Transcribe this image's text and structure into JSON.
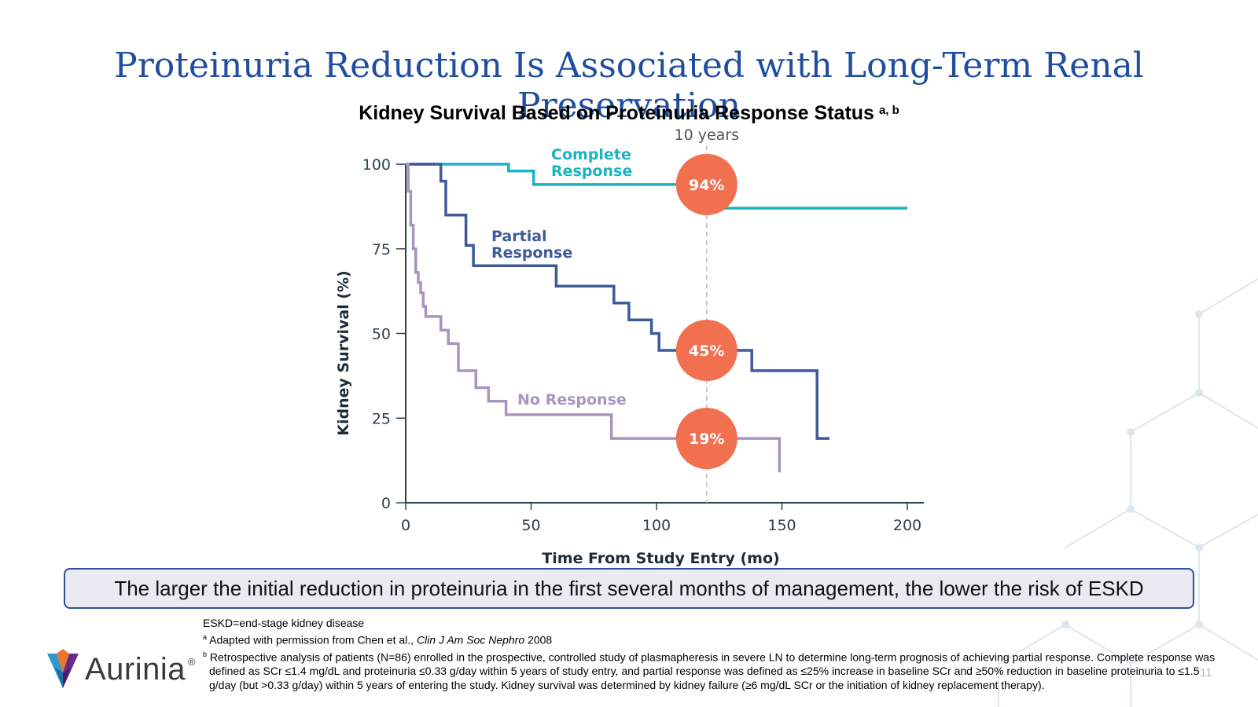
{
  "slide": {
    "title": "Proteinuria Reduction Is Associated with Long-Term Renal Preservation",
    "chart_title": "Kidney Survival Based on Proteinuria Response Status",
    "chart_title_superscript": "a, b",
    "callout": "The larger the initial reduction in proteinuria in the first several months of management, the lower the risk of ESKD",
    "footnotes": {
      "abbrev": "ESKD=end-stage kidney disease",
      "a_marker": "a",
      "a_text_before": "Adapted with permission from Chen et al., ",
      "a_text_italic": "Clin J Am Soc Nephro",
      "a_text_after": " 2008",
      "b_marker": "b",
      "b_text": "Retrospective analysis of patients (N=86) enrolled in the prospective, controlled study of plasmapheresis in severe LN to determine long-term prognosis of achieving partial response. Complete response was defined as SCr ≤1.4 mg/dL and proteinuria ≤0.33 g/day within 5 years of study entry, and partial response was defined as ≤25% increase in baseline SCr and ≥50% reduction in baseline proteinuria to ≤1.5 g/day (but >0.33 g/day) within 5 years of entering the study. Kidney survival was determined by kidney failure (≥6 mg/dL SCr or the initiation of kidney replacement therapy)."
    },
    "logo_text": "Aurinia",
    "logo_reg": "®",
    "page_number": "11"
  },
  "colors": {
    "title": "#1f4e9e",
    "complete": "#1ab3c4",
    "partial": "#3e5a98",
    "none": "#a795c0",
    "marker": "#f0704f",
    "axis": "#2d4250",
    "callout_border": "#2f4f9a",
    "callout_bg": "#ebe9f2"
  },
  "chart_data": {
    "type": "line",
    "step": true,
    "xlabel": "Time From Study Entry (mo)",
    "ylabel": "Kidney Survival (%)",
    "xlim": [
      0,
      200
    ],
    "ylim": [
      0,
      100
    ],
    "xticks": [
      0,
      50,
      100,
      150,
      200
    ],
    "yticks": [
      0,
      25,
      50,
      75,
      100
    ],
    "reference_line": {
      "x": 120,
      "label": "10 years"
    },
    "series": [
      {
        "name": "Complete Response",
        "label_lines": [
          "Complete",
          "Response"
        ],
        "color_key": "complete",
        "points": [
          [
            0,
            100
          ],
          [
            41,
            100
          ],
          [
            41,
            98
          ],
          [
            51,
            98
          ],
          [
            51,
            94
          ],
          [
            120,
            94
          ],
          [
            120,
            87
          ],
          [
            200,
            87
          ]
        ]
      },
      {
        "name": "Partial Response",
        "label_lines": [
          "Partial",
          "Response"
        ],
        "color_key": "partial",
        "points": [
          [
            0,
            100
          ],
          [
            14,
            100
          ],
          [
            14,
            95
          ],
          [
            16,
            95
          ],
          [
            16,
            85
          ],
          [
            24,
            85
          ],
          [
            24,
            76
          ],
          [
            27,
            76
          ],
          [
            27,
            70
          ],
          [
            60,
            70
          ],
          [
            60,
            64
          ],
          [
            83,
            64
          ],
          [
            83,
            59
          ],
          [
            89,
            59
          ],
          [
            89,
            54
          ],
          [
            98,
            54
          ],
          [
            98,
            50
          ],
          [
            101,
            50
          ],
          [
            101,
            45
          ],
          [
            120,
            45
          ],
          [
            138,
            45
          ],
          [
            138,
            39
          ],
          [
            164,
            39
          ],
          [
            164,
            19
          ],
          [
            169,
            19
          ]
        ]
      },
      {
        "name": "No Response",
        "label_lines": [
          "No Response"
        ],
        "color_key": "none",
        "points": [
          [
            0,
            100
          ],
          [
            1,
            100
          ],
          [
            1,
            92
          ],
          [
            2,
            92
          ],
          [
            2,
            82
          ],
          [
            3,
            82
          ],
          [
            3,
            75
          ],
          [
            4,
            75
          ],
          [
            4,
            68
          ],
          [
            5,
            68
          ],
          [
            5,
            65
          ],
          [
            6,
            65
          ],
          [
            6,
            62
          ],
          [
            7,
            62
          ],
          [
            7,
            58
          ],
          [
            8,
            58
          ],
          [
            8,
            55
          ],
          [
            14,
            55
          ],
          [
            14,
            51
          ],
          [
            17,
            51
          ],
          [
            17,
            47
          ],
          [
            21,
            47
          ],
          [
            21,
            39
          ],
          [
            28,
            39
          ],
          [
            28,
            34
          ],
          [
            33,
            34
          ],
          [
            33,
            30
          ],
          [
            40,
            30
          ],
          [
            40,
            26
          ],
          [
            82,
            26
          ],
          [
            82,
            19
          ],
          [
            120,
            19
          ],
          [
            149,
            19
          ],
          [
            149,
            9
          ]
        ]
      }
    ],
    "markers": [
      {
        "x": 120,
        "y": 94,
        "label": "94%"
      },
      {
        "x": 120,
        "y": 45,
        "label": "45%"
      },
      {
        "x": 120,
        "y": 19,
        "label": "19%"
      }
    ]
  }
}
